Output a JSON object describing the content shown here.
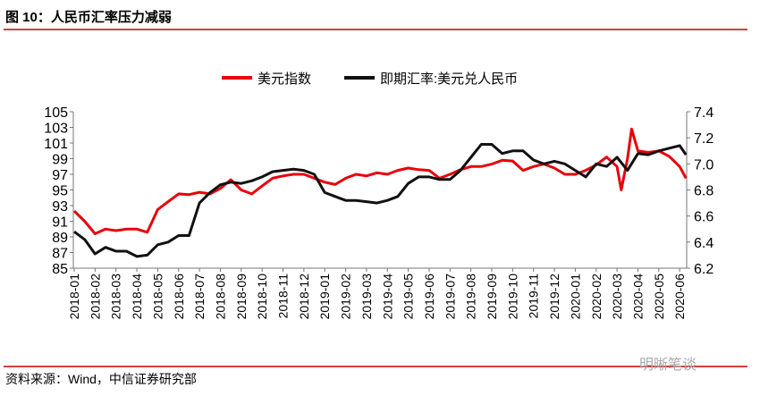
{
  "title": "图 10：人民币汇率压力减弱",
  "source": "资料来源：Wind，中信证券研究部",
  "watermark": "明晰笔谈",
  "colors": {
    "usd_index": "#e8000b",
    "usdcny": "#111111",
    "rule": "#c00000"
  },
  "chart_data": {
    "type": "line",
    "title": "图 10：人民币汇率压力减弱",
    "legend_placement": "top-center",
    "x_ticks": [
      "2018-01",
      "2018-02",
      "2018-03",
      "2018-04",
      "2018-05",
      "2018-06",
      "2018-07",
      "2018-08",
      "2018-09",
      "2018-10",
      "2018-11",
      "2018-12",
      "2019-01",
      "2019-02",
      "2019-03",
      "2019-04",
      "2019-05",
      "2019-06",
      "2019-07",
      "2019-08",
      "2019-09",
      "2019-10",
      "2019-11",
      "2019-12",
      "2020-01",
      "2020-02",
      "2020-03",
      "2020-04",
      "2020-05",
      "2020-06"
    ],
    "y_left": {
      "lim": [
        85,
        105
      ],
      "ticks": [
        "85",
        "87",
        "89",
        "91",
        "93",
        "95",
        "97",
        "99",
        "101",
        "103",
        "105"
      ]
    },
    "y_right": {
      "lim": [
        6.2,
        7.4
      ],
      "ticks": [
        "6.2",
        "6.4",
        "6.6",
        "6.8",
        "7.0",
        "7.2",
        "7.4"
      ]
    },
    "x_unit": "months since 2018-01",
    "series": [
      {
        "name": "美元指数",
        "axis": "left",
        "x": [
          0,
          0.5,
          1,
          1.5,
          2,
          2.5,
          3,
          3.5,
          4,
          4.5,
          5,
          5.5,
          6,
          6.5,
          7,
          7.5,
          8,
          8.5,
          9,
          9.5,
          10,
          10.5,
          11,
          11.5,
          12,
          12.5,
          13,
          13.5,
          14,
          14.5,
          15,
          15.5,
          16,
          16.5,
          17,
          17.5,
          18,
          18.5,
          19,
          19.5,
          20,
          20.5,
          21,
          21.5,
          22,
          22.5,
          23,
          23.5,
          24,
          24.5,
          25,
          25.5,
          26,
          26.2,
          26.5,
          26.7,
          27,
          27.5,
          28,
          28.5,
          29,
          29.3
        ],
        "y": [
          92.3,
          91,
          89.4,
          90,
          89.8,
          90,
          90,
          89.6,
          92.5,
          93.5,
          94.5,
          94.4,
          94.7,
          94.5,
          95.2,
          96.3,
          95,
          94.5,
          95.5,
          96.5,
          96.8,
          97,
          97,
          96.5,
          96,
          95.7,
          96.5,
          97,
          96.8,
          97.2,
          97,
          97.5,
          97.8,
          97.6,
          97.5,
          96.5,
          97,
          97.6,
          98,
          98,
          98.3,
          98.8,
          98.7,
          97.5,
          98,
          98.3,
          97.8,
          97,
          97,
          97.5,
          98.2,
          99.2,
          98,
          95,
          99,
          102.8,
          100,
          99.8,
          100,
          99.3,
          98,
          96.5
        ]
      },
      {
        "name": "即期汇率:美元兑人民币",
        "axis": "right",
        "x": [
          0,
          0.5,
          1,
          1.5,
          2,
          2.5,
          3,
          3.5,
          4,
          4.5,
          5,
          5.5,
          6,
          6.5,
          7,
          7.5,
          8,
          8.5,
          9,
          9.5,
          10,
          10.5,
          11,
          11.5,
          12,
          12.5,
          13,
          13.5,
          14,
          14.5,
          15,
          15.5,
          16,
          16.5,
          17,
          17.5,
          18,
          18.5,
          19,
          19.5,
          20,
          20.5,
          21,
          21.5,
          22,
          22.5,
          23,
          23.5,
          24,
          24.5,
          25,
          25.5,
          26,
          26.5,
          27,
          27.5,
          28,
          28.5,
          29,
          29.3
        ],
        "y": [
          6.48,
          6.42,
          6.31,
          6.36,
          6.33,
          6.33,
          6.29,
          6.3,
          6.38,
          6.4,
          6.45,
          6.45,
          6.7,
          6.78,
          6.84,
          6.86,
          6.85,
          6.87,
          6.9,
          6.94,
          6.95,
          6.96,
          6.95,
          6.92,
          6.78,
          6.75,
          6.72,
          6.72,
          6.71,
          6.7,
          6.72,
          6.75,
          6.85,
          6.9,
          6.9,
          6.88,
          6.88,
          6.95,
          7.05,
          7.15,
          7.15,
          7.08,
          7.1,
          7.1,
          7.03,
          7.0,
          7.02,
          7.0,
          6.95,
          6.9,
          7.0,
          6.98,
          7.05,
          6.95,
          7.08,
          7.07,
          7.1,
          7.12,
          7.14,
          7.07
        ]
      }
    ]
  }
}
